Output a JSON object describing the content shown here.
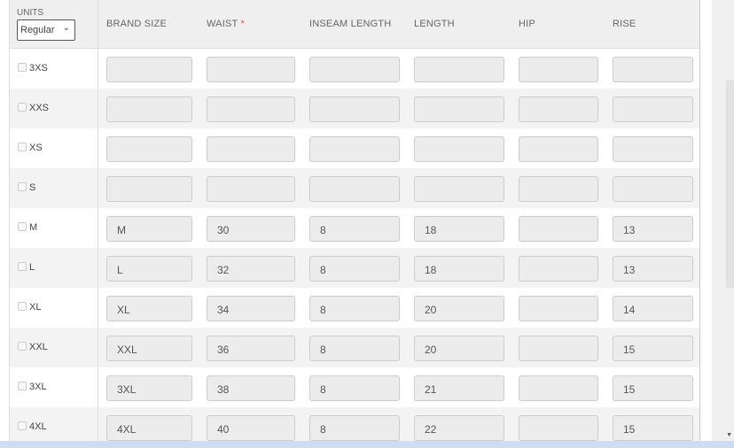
{
  "units": {
    "label": "UNITS",
    "selected": "Regular"
  },
  "columns": [
    "BRAND SIZE",
    "WAIST",
    "INSEAM LENGTH",
    "LENGTH",
    "HIP",
    "RISE"
  ],
  "required_marker": "*",
  "rows": [
    {
      "size": "3XS",
      "values": [
        "",
        "",
        "",
        "",
        "",
        ""
      ]
    },
    {
      "size": "XXS",
      "values": [
        "",
        "",
        "",
        "",
        "",
        ""
      ]
    },
    {
      "size": "XS",
      "values": [
        "",
        "",
        "",
        "",
        "",
        ""
      ]
    },
    {
      "size": "S",
      "values": [
        "",
        "",
        "",
        "",
        "",
        ""
      ]
    },
    {
      "size": "M",
      "values": [
        "M",
        "30",
        "8",
        "18",
        "",
        "13"
      ]
    },
    {
      "size": "L",
      "values": [
        "L",
        "32",
        "8",
        "18",
        "",
        "13"
      ]
    },
    {
      "size": "XL",
      "values": [
        "XL",
        "34",
        "8",
        "20",
        "",
        "14"
      ]
    },
    {
      "size": "XXL",
      "values": [
        "XXL",
        "36",
        "8",
        "20",
        "",
        "15"
      ]
    },
    {
      "size": "3XL",
      "values": [
        "3XL",
        "38",
        "8",
        "21",
        "",
        "15"
      ]
    },
    {
      "size": "4XL",
      "values": [
        "4XL",
        "40",
        "8",
        "22",
        "",
        "15"
      ]
    }
  ]
}
